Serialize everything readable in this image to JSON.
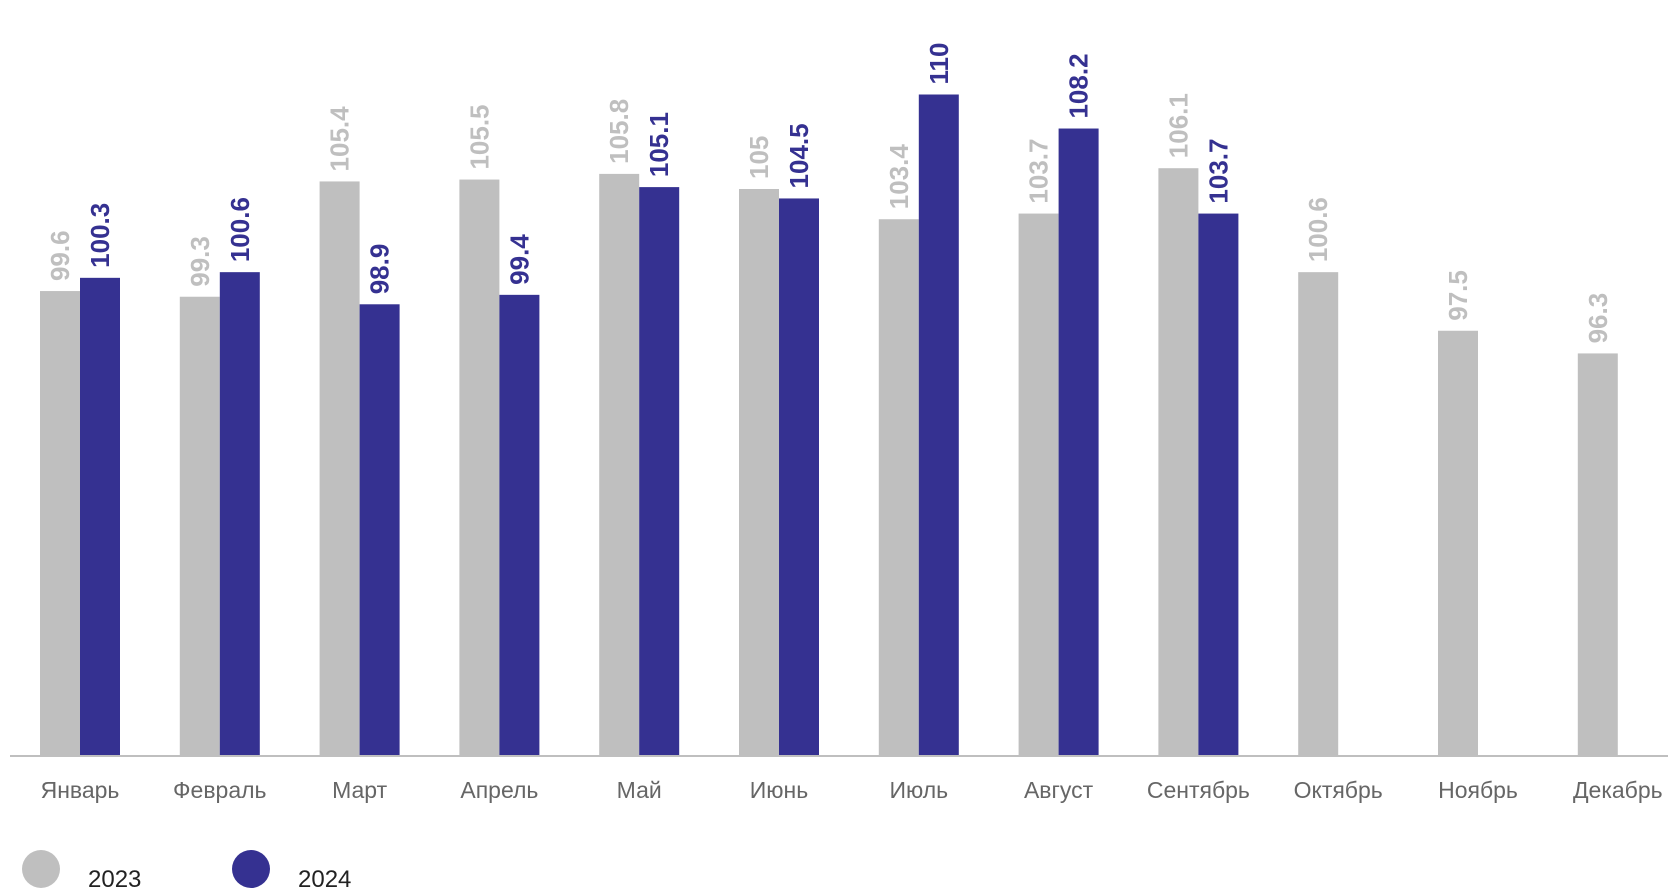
{
  "chart_data": {
    "type": "bar",
    "title": "",
    "xlabel": "",
    "ylabel": "",
    "ylim": [
      75,
      112
    ],
    "grid": false,
    "legend_position": "bottom-left",
    "categories": [
      "Январь",
      "Февраль",
      "Март",
      "Апрель",
      "Май",
      "Июнь",
      "Июль",
      "Август",
      "Сентябрь",
      "Октябрь",
      "Ноябрь",
      "Декабрь"
    ],
    "series": [
      {
        "name": "2023",
        "color": "#bfbfbf",
        "values": [
          99.6,
          99.3,
          105.4,
          105.5,
          105.8,
          105,
          103.4,
          103.7,
          106.1,
          100.6,
          97.5,
          96.3
        ],
        "labels": [
          "99.6",
          "99.3",
          "105.4",
          "105.5",
          "105.8",
          "105",
          "103.4",
          "103.7",
          "106.1",
          "100.6",
          "97.5",
          "96.3"
        ]
      },
      {
        "name": "2024",
        "color": "#353191",
        "values": [
          100.3,
          100.6,
          98.9,
          99.4,
          105.1,
          104.5,
          110,
          108.2,
          103.7,
          null,
          null,
          null
        ],
        "labels": [
          "100.3",
          "100.6",
          "98.9",
          "99.4",
          "105.1",
          "104.5",
          "110",
          "108.2",
          "103.7",
          null,
          null,
          null
        ]
      }
    ]
  },
  "legend": {
    "items": [
      {
        "label": "2023",
        "color": "#bfbfbf"
      },
      {
        "label": "2024",
        "color": "#353191"
      }
    ]
  }
}
